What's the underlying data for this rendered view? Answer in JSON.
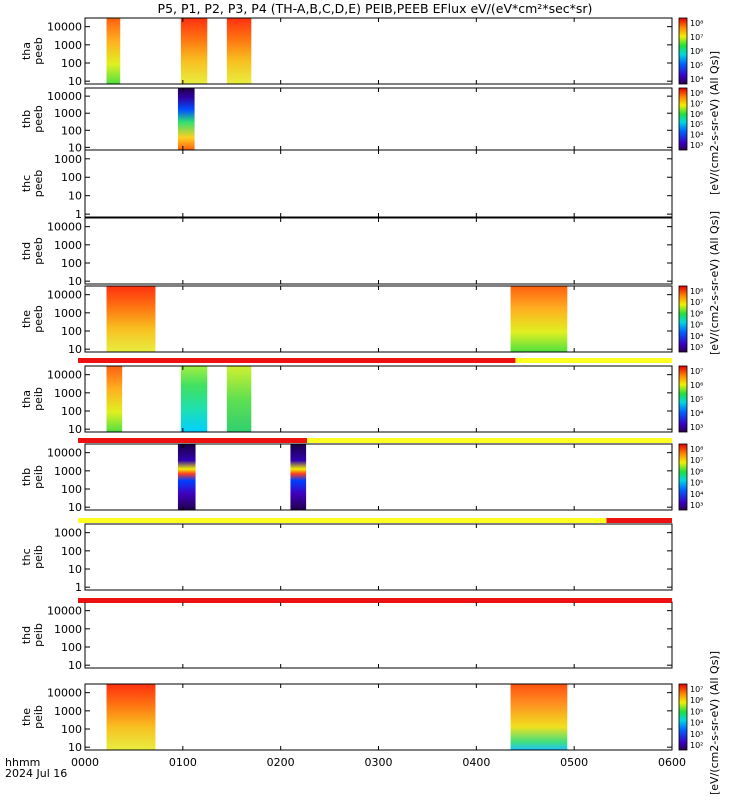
{
  "title": "P5, P1, P2, P3, P4 (TH-A,B,C,D,E) PEIB,PEEB EFlux eV/(eV*cm²*sec*sr)",
  "time_axis": {
    "ticks": [
      "0000",
      "0100",
      "0200",
      "0300",
      "0400",
      "0500",
      "0600"
    ],
    "label": "hhmm",
    "date": "2024 Jul 16"
  },
  "colorbar_labels": {
    "peeb_top": "[eV/(cm2-s-sr-eV) (All Qs)]",
    "peeb_mid": "[eV/(cm2-s-sr-eV) (All Qs)]",
    "peib_bottom": "[eV/(cm2-s-sr-eV) (All Qs)]"
  },
  "chart_data": [
    {
      "type": "heatmap",
      "probe": "tha",
      "instrument": "peeb",
      "ylabel": "tha\npeeb",
      "yticks": [
        "10000",
        "1000",
        "100",
        "10"
      ],
      "ylog": true,
      "ylim": [
        7,
        30000
      ],
      "intervals": [
        [
          0.22,
          0.36
        ],
        [
          0.98,
          1.25
        ],
        [
          1.45,
          1.7
        ]
      ],
      "colorbar": {
        "ticks": [
          "10⁸",
          "10⁷",
          "10⁶",
          "10⁵",
          "10⁴"
        ]
      }
    },
    {
      "type": "heatmap",
      "probe": "thb",
      "instrument": "peeb",
      "ylabel": "thb\npeeb",
      "yticks": [
        "10000",
        "1000",
        "100",
        "10"
      ],
      "ylog": true,
      "ylim": [
        7,
        30000
      ],
      "intervals": [
        [
          0.95,
          1.12
        ]
      ],
      "colorbar": {
        "ticks": [
          "10⁸",
          "10⁷",
          "10⁶",
          "10⁵",
          "10⁴",
          "10³"
        ]
      }
    },
    {
      "type": "heatmap",
      "probe": "thc",
      "instrument": "peeb",
      "ylabel": "thc\npeeb",
      "yticks": [
        "1000",
        "100",
        "10",
        "1"
      ],
      "ylog": true,
      "ylim": [
        0.7,
        3000
      ],
      "intervals": []
    },
    {
      "type": "heatmap",
      "probe": "thd",
      "instrument": "peeb",
      "ylabel": "thd\npeeb",
      "yticks": [
        "10000",
        "1000",
        "100",
        "10"
      ],
      "ylog": true,
      "ylim": [
        7,
        30000
      ],
      "intervals": []
    },
    {
      "type": "heatmap",
      "probe": "the",
      "instrument": "peeb",
      "ylabel": "the\npeeb",
      "yticks": [
        "10000",
        "1000",
        "100",
        "10"
      ],
      "ylog": true,
      "ylim": [
        7,
        30000
      ],
      "intervals": [
        [
          0.22,
          0.72
        ],
        [
          4.35,
          4.93
        ]
      ],
      "colorbar": {
        "ticks": [
          "10⁸",
          "10⁷",
          "10⁶",
          "10⁵",
          "10⁴",
          "10³"
        ]
      },
      "status_bar": [
        {
          "from": 0.0,
          "to": 4.4,
          "state": "red"
        },
        {
          "from": 4.4,
          "to": 6.0,
          "state": "yellow"
        }
      ]
    },
    {
      "type": "heatmap",
      "probe": "tha",
      "instrument": "peib",
      "ylabel": "tha\npeib",
      "yticks": [
        "10000",
        "1000",
        "100",
        "10"
      ],
      "ylog": true,
      "ylim": [
        7,
        30000
      ],
      "intervals": [
        [
          0.22,
          0.38
        ],
        [
          0.98,
          1.25
        ],
        [
          1.45,
          1.7
        ]
      ],
      "colorbar": {
        "ticks": [
          "10⁷",
          "10⁶",
          "10⁵",
          "10⁴",
          "10³"
        ]
      },
      "status_bar": [
        {
          "from": 0.0,
          "to": 2.27,
          "state": "red"
        },
        {
          "from": 2.27,
          "to": 6.0,
          "state": "yellow"
        }
      ]
    },
    {
      "type": "heatmap",
      "probe": "thb",
      "instrument": "peib",
      "ylabel": "thb\npeib",
      "yticks": [
        "10000",
        "1000",
        "100",
        "10"
      ],
      "ylog": true,
      "ylim": [
        7,
        30000
      ],
      "intervals": [
        [
          0.95,
          1.13
        ],
        [
          2.1,
          2.26
        ]
      ],
      "colorbar": {
        "ticks": [
          "10⁸",
          "10⁷",
          "10⁶",
          "10⁵",
          "10⁴",
          "10³"
        ]
      },
      "status_bar": [
        {
          "from": 0.0,
          "to": 2.27,
          "state": "red"
        },
        {
          "from": 2.27,
          "to": 6.0,
          "state": "yellow"
        }
      ]
    },
    {
      "type": "heatmap",
      "probe": "thc",
      "instrument": "peib",
      "ylabel": "thc\npeib",
      "yticks": [
        "1000",
        "100",
        "10",
        "1"
      ],
      "ylog": true,
      "ylim": [
        0.7,
        3000
      ],
      "intervals": [],
      "status_bar": [
        {
          "from": 0.0,
          "to": 5.33,
          "state": "yellow"
        },
        {
          "from": 5.33,
          "to": 6.0,
          "state": "red"
        }
      ]
    },
    {
      "type": "heatmap",
      "probe": "thd",
      "instrument": "peib",
      "ylabel": "thd\npeib",
      "yticks": [
        "10000",
        "1000",
        "100",
        "10"
      ],
      "ylog": true,
      "ylim": [
        7,
        30000
      ],
      "intervals": [],
      "status_bar": [
        {
          "from": 0.0,
          "to": 6.0,
          "state": "red"
        }
      ]
    },
    {
      "type": "heatmap",
      "probe": "the",
      "instrument": "peib",
      "ylabel": "the\npeib",
      "yticks": [
        "10000",
        "1000",
        "100",
        "10"
      ],
      "ylog": true,
      "ylim": [
        7,
        30000
      ],
      "intervals": [
        [
          0.22,
          0.72
        ],
        [
          4.35,
          4.93
        ]
      ],
      "colorbar": {
        "ticks": [
          "10⁷",
          "10⁶",
          "10⁵",
          "10⁴",
          "10³",
          "10²"
        ]
      }
    }
  ]
}
